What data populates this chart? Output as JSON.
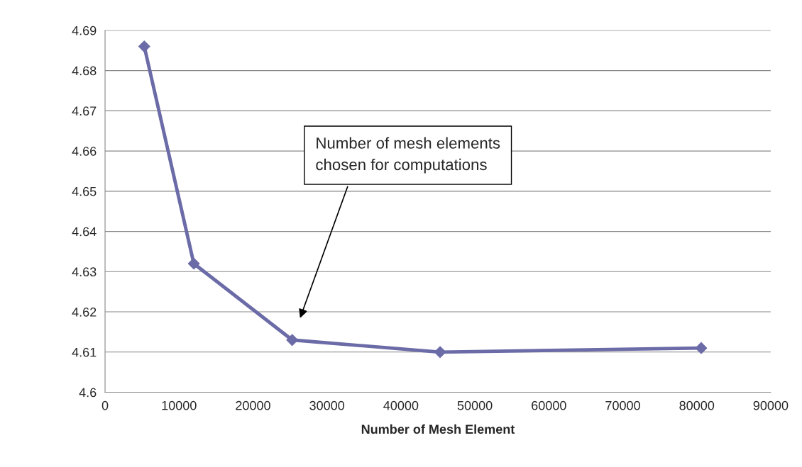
{
  "chart_data": {
    "type": "line",
    "x": [
      5300,
      12000,
      25300,
      45300,
      80600
    ],
    "series": [
      {
        "color": "#6b6ba8",
        "values": [
          4.686,
          4.632,
          4.613,
          4.61,
          4.611
        ]
      }
    ],
    "xlabel": "Number of Mesh Element",
    "xlim": [
      0,
      90000
    ],
    "xticks": [
      0,
      10000,
      20000,
      30000,
      40000,
      50000,
      60000,
      70000,
      80000,
      90000
    ],
    "ylim": [
      4.6,
      4.69
    ],
    "yticks": [
      {
        "value": 4.6,
        "label": "4.6"
      },
      4.61,
      4.62,
      4.63,
      4.64,
      4.65,
      4.66,
      4.67,
      4.68,
      4.69
    ],
    "grid": "y",
    "marker": "diamond",
    "line_style": "solid",
    "annotations": [
      "Number of mesh elements\nchosen for computations"
    ]
  }
}
